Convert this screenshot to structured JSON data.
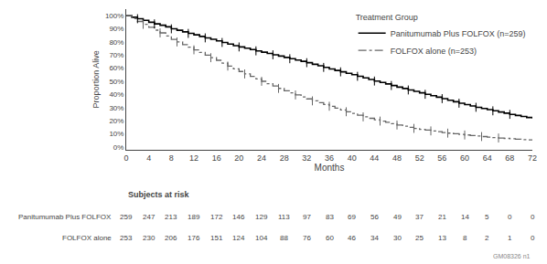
{
  "chart_data": {
    "type": "step",
    "xlabel": "Months",
    "ylabel": "Proportion Alive",
    "x": [
      0,
      1,
      2,
      3,
      4,
      5,
      6,
      7,
      8,
      9,
      10,
      11,
      12,
      13,
      14,
      15,
      16,
      17,
      18,
      19,
      20,
      21,
      22,
      23,
      24,
      25,
      26,
      27,
      28,
      29,
      30,
      31,
      32,
      33,
      34,
      35,
      36,
      37,
      38,
      39,
      40,
      41,
      42,
      43,
      44,
      45,
      46,
      47,
      48,
      49,
      50,
      51,
      52,
      53,
      54,
      55,
      56,
      57,
      58,
      59,
      60,
      61,
      62,
      63,
      64,
      65,
      66,
      67,
      68,
      69,
      70,
      71,
      72
    ],
    "xlim": [
      0,
      72
    ],
    "ylim": [
      -0.02,
      1.05
    ],
    "xticks": [
      0,
      4,
      8,
      12,
      16,
      20,
      24,
      28,
      32,
      36,
      40,
      44,
      48,
      52,
      56,
      60,
      64,
      68,
      72
    ],
    "yticks": [
      {
        "value": 0,
        "label": "0%"
      },
      {
        "value": 0.1,
        "label": "10%"
      },
      {
        "value": 0.2,
        "label": "20%"
      },
      {
        "value": 0.3,
        "label": "30%"
      },
      {
        "value": 0.4,
        "label": "40%"
      },
      {
        "value": 0.5,
        "label": "50%"
      },
      {
        "value": 0.6,
        "label": "60%"
      },
      {
        "value": 0.7,
        "label": "70%"
      },
      {
        "value": 0.8,
        "label": "80%"
      },
      {
        "value": 0.9,
        "label": "90%"
      },
      {
        "value": 1.0,
        "label": "100%"
      }
    ],
    "grid": false,
    "legend": "upper right",
    "legend_title": "Treatment Group",
    "series": [
      {
        "name": "Panitumumab Plus FOLFOX (n=259)",
        "color": "#000000",
        "line_style": "solid",
        "values": [
          1.0,
          0.988,
          0.977,
          0.965,
          0.95,
          0.938,
          0.927,
          0.915,
          0.9,
          0.889,
          0.877,
          0.865,
          0.854,
          0.842,
          0.831,
          0.82,
          0.808,
          0.796,
          0.784,
          0.772,
          0.762,
          0.752,
          0.742,
          0.732,
          0.722,
          0.712,
          0.702,
          0.692,
          0.682,
          0.672,
          0.662,
          0.652,
          0.642,
          0.63,
          0.618,
          0.606,
          0.594,
          0.583,
          0.572,
          0.561,
          0.55,
          0.538,
          0.526,
          0.514,
          0.502,
          0.491,
          0.48,
          0.468,
          0.456,
          0.445,
          0.434,
          0.423,
          0.412,
          0.401,
          0.39,
          0.379,
          0.368,
          0.356,
          0.344,
          0.333,
          0.322,
          0.312,
          0.302,
          0.293,
          0.284,
          0.275,
          0.266,
          0.257,
          0.248,
          0.24,
          0.232,
          0.224,
          0.216
        ],
        "censor_x": [
          2,
          5,
          8,
          11,
          14,
          17,
          20,
          23,
          26,
          29,
          32,
          35,
          38,
          41,
          44,
          47,
          50,
          53,
          56,
          59,
          62,
          65,
          68
        ]
      },
      {
        "name": "FOLFOX alone (n=253)",
        "color": "#666666",
        "line_style": "dashdot",
        "values": [
          1.0,
          0.978,
          0.956,
          0.934,
          0.912,
          0.89,
          0.869,
          0.845,
          0.82,
          0.8,
          0.78,
          0.76,
          0.74,
          0.72,
          0.7,
          0.68,
          0.66,
          0.638,
          0.616,
          0.595,
          0.575,
          0.556,
          0.537,
          0.518,
          0.5,
          0.482,
          0.464,
          0.446,
          0.428,
          0.412,
          0.396,
          0.381,
          0.366,
          0.351,
          0.337,
          0.323,
          0.31,
          0.296,
          0.282,
          0.268,
          0.255,
          0.242,
          0.229,
          0.218,
          0.207,
          0.197,
          0.187,
          0.177,
          0.167,
          0.158,
          0.149,
          0.141,
          0.134,
          0.128,
          0.122,
          0.116,
          0.11,
          0.105,
          0.1,
          0.095,
          0.091,
          0.087,
          0.083,
          0.079,
          0.075,
          0.071,
          0.068,
          0.065,
          0.062,
          0.059,
          0.056,
          0.053,
          0.05
        ],
        "censor_x": [
          3,
          6,
          9,
          12,
          15,
          18,
          21,
          24,
          27,
          30,
          33,
          36,
          39,
          42,
          45,
          48,
          51,
          54,
          57,
          60,
          63,
          66
        ]
      }
    ],
    "at_risk": {
      "title": "Subjects at risk",
      "rows": [
        {
          "name": "Panitumumab Plus FOLFOX",
          "values": [
            259,
            247,
            213,
            189,
            172,
            146,
            129,
            113,
            97,
            83,
            69,
            56,
            49,
            37,
            21,
            14,
            5,
            0,
            0
          ]
        },
        {
          "name": "FOLFOX alone",
          "values": [
            253,
            230,
            206,
            176,
            151,
            124,
            104,
            88,
            76,
            60,
            46,
            34,
            30,
            25,
            13,
            8,
            2,
            1,
            0
          ]
        }
      ]
    },
    "watermark": "GM08326 n1"
  }
}
